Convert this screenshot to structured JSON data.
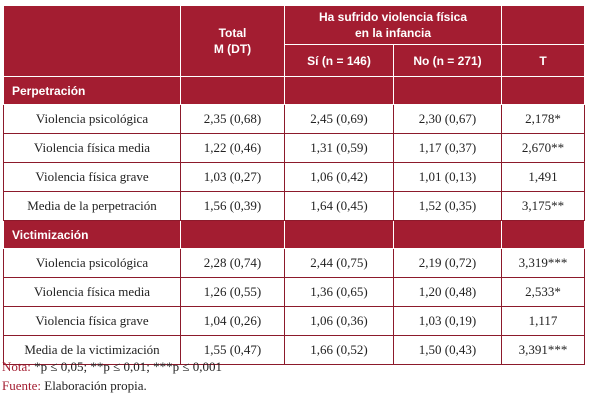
{
  "header": {
    "total_line1": "Total",
    "total_line2": "M (DT)",
    "group_line1": "Ha sufrido violencia física",
    "group_line2": "en la infancia",
    "yes": "Sí (n = 146)",
    "no": "No (n = 271)",
    "t": "T"
  },
  "sections": [
    {
      "title": "Perpetración",
      "rows": [
        {
          "label": "Violencia psicológica",
          "total": "2,35 (0,68)",
          "yes": "2,45 (0,69)",
          "no": "2,30 (0,67)",
          "t": "2,178*"
        },
        {
          "label": "Violencia física media",
          "total": "1,22 (0,46)",
          "yes": "1,31 (0,59)",
          "no": "1,17 (0,37)",
          "t": "2,670**"
        },
        {
          "label": "Violencia física grave",
          "total": "1,03 (0,27)",
          "yes": "1,06 (0,42)",
          "no": "1,01 (0,13)",
          "t": "1,491"
        },
        {
          "label": "Media de la perpetración",
          "total": "1,56 (0,39)",
          "yes": "1,64 (0,45)",
          "no": "1,52 (0,35)",
          "t": "3,175**"
        }
      ]
    },
    {
      "title": "Victimización",
      "rows": [
        {
          "label": "Violencia psicológica",
          "total": "2,28 (0,74)",
          "yes": "2,44 (0,75)",
          "no": "2,19 (0,72)",
          "t": "3,319***"
        },
        {
          "label": "Violencia física media",
          "total": "1,26 (0,55)",
          "yes": "1,36 (0,65)",
          "no": "1,20 (0,48)",
          "t": "2,533*"
        },
        {
          "label": "Violencia física grave",
          "total": "1,04 (0,26)",
          "yes": "1,06 (0,36)",
          "no": "1,03 (0,19)",
          "t": "1,117"
        },
        {
          "label": "Media de la victimización",
          "total": "1,55 (0,47)",
          "yes": "1,66 (0,52)",
          "no": "1,50 (0,43)",
          "t": "3,391***"
        }
      ]
    }
  ],
  "notes": {
    "nota_key": "Nota:",
    "nota_text": " *p ≤ 0,05; **p ≤ 0,01; ***p ≤ 0,001",
    "fuente_key": "Fuente:",
    "fuente_text": " Elaboración propia."
  },
  "colors": {
    "accent": "#a31d31",
    "text": "#222222"
  }
}
